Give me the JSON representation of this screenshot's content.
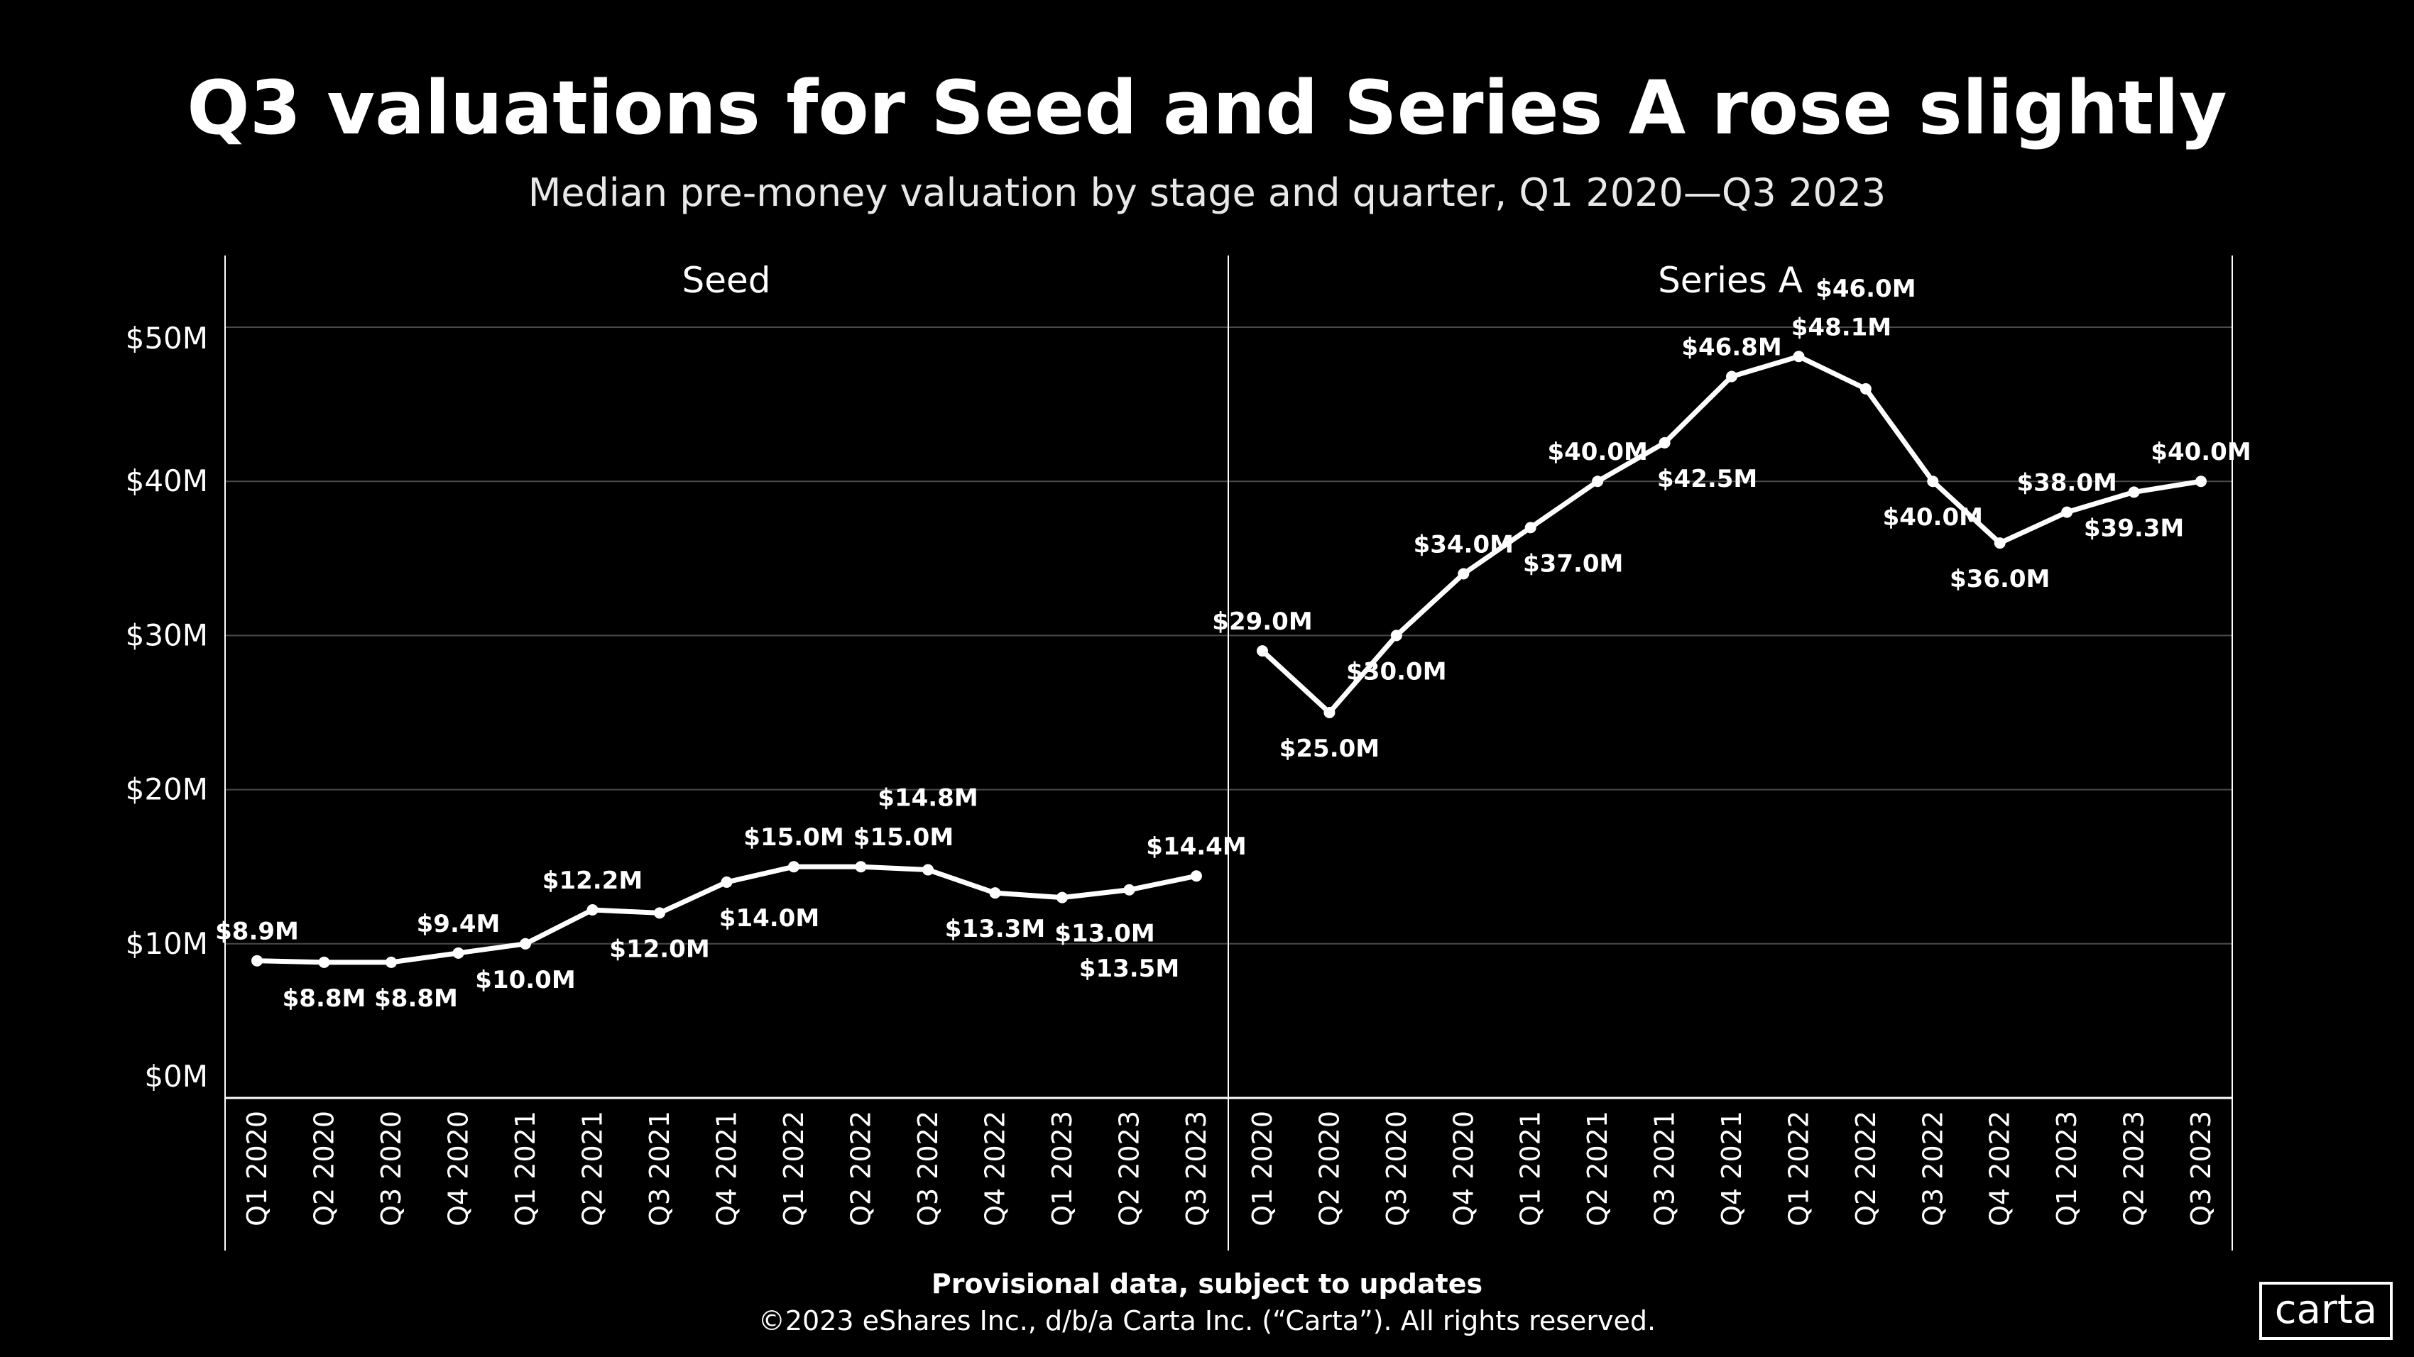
{
  "colors": {
    "background": "#000000",
    "line": "#ffffff",
    "grid": "#4a4a4a"
  },
  "chart_data": {
    "type": "line",
    "title": "Q3 valuations for Seed and Series A rose slightly",
    "subtitle": "Median pre-money valuation by stage and quarter, Q1 2020—Q3 2023",
    "categories": [
      "Q1 2020",
      "Q2 2020",
      "Q3 2020",
      "Q4 2020",
      "Q1 2021",
      "Q2 2021",
      "Q3 2021",
      "Q4 2021",
      "Q1 2022",
      "Q2 2022",
      "Q3 2022",
      "Q4 2022",
      "Q1 2023",
      "Q2 2023",
      "Q3 2023"
    ],
    "yticks": [
      "$0M",
      "$10M",
      "$20M",
      "$30M",
      "$40M",
      "$50M"
    ],
    "ylim": [
      0,
      50
    ],
    "yunit": "$M",
    "grid": true,
    "panels": [
      {
        "name": "Seed",
        "values": [
          8.9,
          8.8,
          8.8,
          9.4,
          10.0,
          12.2,
          12.0,
          14.0,
          15.0,
          15.0,
          14.8,
          13.3,
          13.0,
          13.5,
          14.4
        ],
        "labels": [
          "$8.9M",
          "$8.8M",
          "$8.8M",
          "$9.4M",
          "$10.0M",
          "$12.2M",
          "$12.0M",
          "$14.0M",
          "$15.0M",
          "$15.0M",
          "$14.8M",
          "$13.3M",
          "$13.0M",
          "$13.5M",
          "$14.4M"
        ]
      },
      {
        "name": "Series A",
        "values": [
          29.0,
          25.0,
          30.0,
          34.0,
          37.0,
          40.0,
          42.5,
          46.8,
          48.1,
          46.0,
          40.0,
          36.0,
          38.0,
          39.3,
          40.0
        ],
        "labels": [
          "$29.0M",
          "$25.0M",
          "$30.0M",
          "$34.0M",
          "$37.0M",
          "$40.0M",
          "$42.5M",
          "$46.8M",
          "$48.1M",
          "$46.0M",
          "$40.0M",
          "$36.0M",
          "$38.0M",
          "$39.3M",
          "$40.0M"
        ]
      }
    ]
  },
  "footer": {
    "note": "Provisional data, subject to updates",
    "copyright": "©2023 eShares Inc., d/b/a Carta Inc. (“Carta”). All rights reserved."
  },
  "logo": {
    "text": "carta"
  }
}
